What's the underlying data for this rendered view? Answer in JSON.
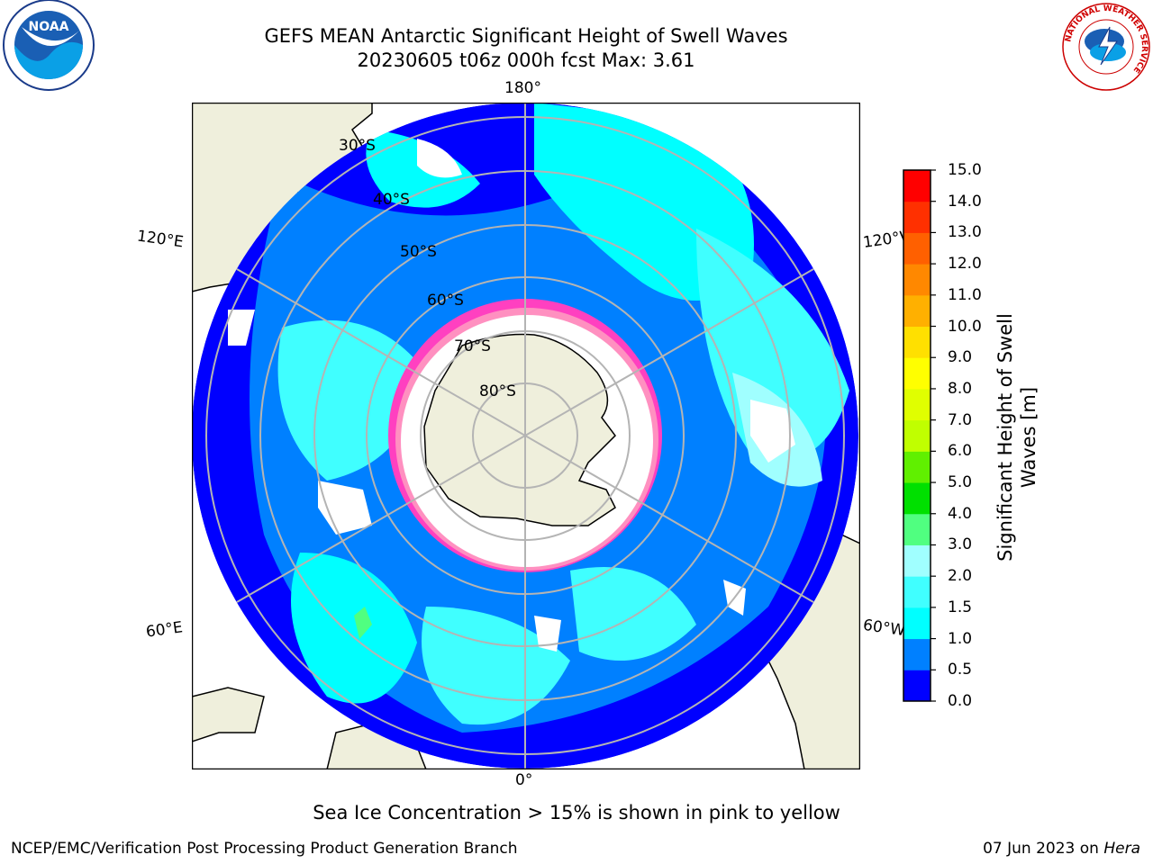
{
  "title": {
    "line1": "GEFS MEAN Antarctic Significant Height of Swell Waves",
    "line2": "20230605 t06z 000h fcst   Max: 3.61"
  },
  "map": {
    "longitude_labels": {
      "top": "180°",
      "bottom": "0°",
      "upper_left": "120°E",
      "upper_right": "120°W",
      "lower_left": "60°E",
      "lower_right": "60°W"
    },
    "latitude_labels": [
      "30°S",
      "40°S",
      "50°S",
      "60°S",
      "70°S",
      "80°S"
    ],
    "colors": {
      "land": "#efefdc",
      "ocean_dark": "#0000ff",
      "ocean_mid": "#0080ff",
      "ocean_light": "#00ffff",
      "ice": "#ffffff",
      "ice_edge": "#ff40c0",
      "grid": "#b4b4b4"
    }
  },
  "colorbar": {
    "title_line1": "Significant Height of Swell",
    "title_line2": "Waves [m]",
    "ticks": [
      "0.0",
      "0.5",
      "1.0",
      "1.5",
      "2.0",
      "3.0",
      "4.0",
      "5.0",
      "6.0",
      "7.0",
      "8.0",
      "9.0",
      "10.0",
      "11.0",
      "12.0",
      "13.0",
      "14.0",
      "15.0"
    ],
    "colors": [
      "#0000ff",
      "#0080ff",
      "#00ffff",
      "#40ffff",
      "#a0ffff",
      "#50ff80",
      "#00e000",
      "#60f000",
      "#c0ff00",
      "#e0ff00",
      "#ffff00",
      "#ffe000",
      "#ffb000",
      "#ff8800",
      "#ff6000",
      "#ff3000",
      "#ff0000"
    ]
  },
  "logos": {
    "left": "NOAA",
    "right_ring": "NATIONAL WEATHER SERVICE"
  },
  "caption": "Sea Ice Concentration > 15% is shown in pink to yellow",
  "footer": {
    "left": "NCEP/EMC/Verification Post Processing Product Generation Branch",
    "right_date": "07 Jun 2023 on ",
    "right_host": "Hera"
  }
}
